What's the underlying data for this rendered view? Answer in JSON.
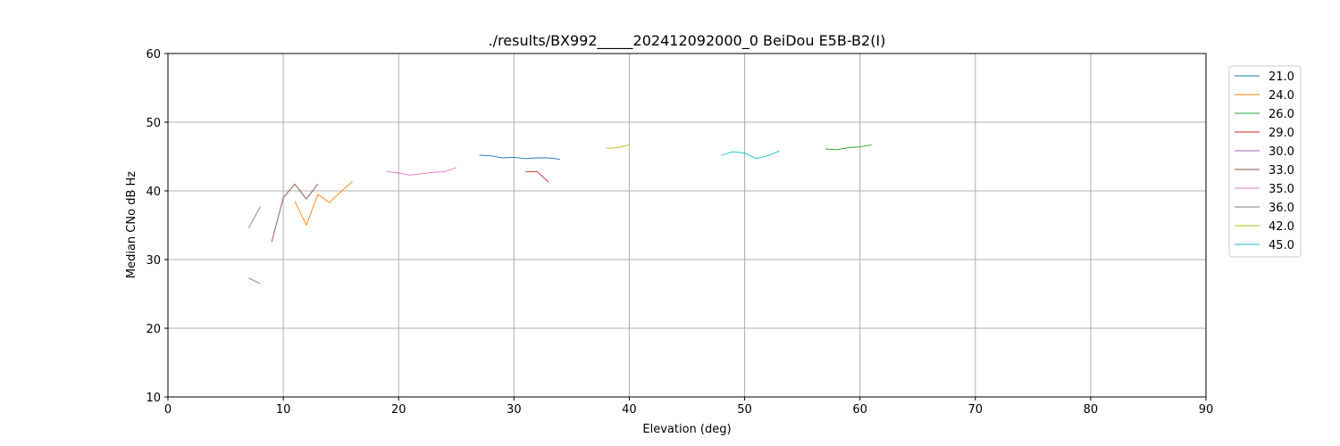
{
  "chart_data": {
    "type": "line",
    "title": "./results/BX992_____202412092000_0 BeiDou E5B-B2(I)",
    "xlabel": "Elevation (deg)",
    "ylabel": "Median CNo dB Hz",
    "xlim": [
      0,
      90
    ],
    "ylim": [
      10,
      60
    ],
    "xticks": [
      "0",
      "10",
      "20",
      "30",
      "40",
      "50",
      "60",
      "70",
      "80",
      "90"
    ],
    "yticks": [
      "10",
      "20",
      "30",
      "40",
      "50",
      "60"
    ],
    "grid": true,
    "legend_position": "right",
    "series": [
      {
        "name": "21.0",
        "color": "#1f77b4",
        "x": [
          27,
          28,
          29,
          30,
          31,
          32,
          33,
          34
        ],
        "y": [
          45.2,
          45.1,
          44.8,
          44.9,
          44.7,
          44.8,
          44.8,
          44.6
        ]
      },
      {
        "name": "24.0",
        "color": "#ff7f0e",
        "x": [
          11,
          12,
          13,
          14,
          15,
          16
        ],
        "y": [
          38.5,
          35.0,
          39.5,
          38.3,
          39.9,
          41.4
        ]
      },
      {
        "name": "26.0",
        "color": "#2ca02c",
        "x": [
          57,
          58,
          59,
          60,
          61
        ],
        "y": [
          46.1,
          46.0,
          46.3,
          46.4,
          46.7
        ]
      },
      {
        "name": "29.0",
        "color": "#d62728",
        "x": [
          31,
          32,
          33
        ],
        "y": [
          42.8,
          42.8,
          41.3
        ]
      },
      {
        "name": "30.0",
        "color": "#9467bd",
        "x": [
          7,
          8
        ],
        "y": [
          27.3,
          26.5
        ]
      },
      {
        "name": "33.0",
        "color": "#8c564b",
        "x": [
          9,
          10,
          11,
          12,
          13
        ],
        "y": [
          32.6,
          39.0,
          41.0,
          38.8,
          41.0
        ]
      },
      {
        "name": "35.0",
        "color": "#e377c2",
        "x": [
          19,
          20,
          21,
          22,
          23,
          24,
          25
        ],
        "y": [
          42.8,
          42.6,
          42.3,
          42.5,
          42.7,
          42.8,
          43.4
        ]
      },
      {
        "name": "36.0",
        "color": "#7f7f7f",
        "x": [
          7,
          8
        ],
        "y": [
          34.6,
          37.7
        ]
      },
      {
        "name": "42.0",
        "color": "#bcbd22",
        "x": [
          38,
          39,
          40
        ],
        "y": [
          46.2,
          46.3,
          46.7
        ]
      },
      {
        "name": "45.0",
        "color": "#17becf",
        "x": [
          48,
          49,
          50,
          51,
          52,
          53
        ],
        "y": [
          45.2,
          45.7,
          45.5,
          44.7,
          45.1,
          45.8
        ]
      }
    ]
  }
}
